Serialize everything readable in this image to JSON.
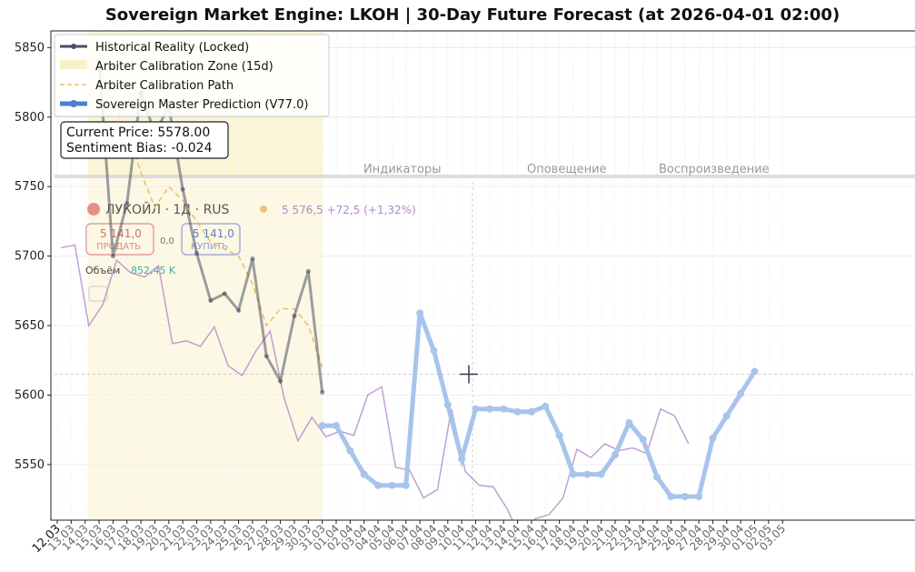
{
  "chart_data": {
    "type": "line",
    "title": "Sovereign Market Engine: LKOH | 30-Day Future Forecast (at 2026-04-01 02:00)",
    "xlabel": "",
    "ylabel": "",
    "ylim": [
      5510,
      5862
    ],
    "y_ticks": [
      5550,
      5600,
      5650,
      5700,
      5750,
      5800,
      5850
    ],
    "x_ticks": [
      "12.03",
      "13.03",
      "14.03",
      "15.03",
      "16.03",
      "17.03",
      "18.03",
      "19.03",
      "20.03",
      "21.03",
      "22.03",
      "23.03",
      "24.03",
      "25.03",
      "26.03",
      "27.03",
      "28.03",
      "29.03",
      "30.03",
      "31.03",
      "01.04",
      "02.04",
      "03.04",
      "04.04",
      "05.04",
      "06.04",
      "07.04",
      "08.04",
      "09.04",
      "10.04",
      "11.04",
      "12.04",
      "13.04",
      "14.04",
      "15.04",
      "16.04",
      "17.04",
      "18.04",
      "19.04",
      "20.04",
      "21.04",
      "22.04",
      "23.04",
      "24.04",
      "25.04",
      "26.04",
      "27.04",
      "28.04",
      "29.04",
      "30.04",
      "01.05",
      "02.05",
      "03.05"
    ],
    "grid": true,
    "legend_position": "top-left",
    "calibration_zone": {
      "start": "14.03",
      "end": "31.03"
    },
    "series": [
      {
        "name": "Historical Reality (Locked)",
        "color": "#4a5060",
        "x": [
          "15.03",
          "16.03",
          "17.03",
          "18.03",
          "19.03",
          "20.03",
          "21.03",
          "22.03",
          "23.03",
          "24.03",
          "25.03",
          "26.03",
          "27.03",
          "28.03",
          "29.03",
          "30.03",
          "31.03"
        ],
        "values": [
          5840,
          5700,
          5738,
          5818,
          5788,
          5808,
          5748,
          5702,
          5668,
          5673,
          5661,
          5698,
          5628,
          5610,
          5657,
          5689,
          5602
        ]
      },
      {
        "name": "Arbiter Calibration Zone (15d)",
        "color": "#fbf1c8"
      },
      {
        "name": "Arbiter Calibration Path",
        "color": "#e8c060",
        "x": [
          "15.03",
          "16.03",
          "17.03",
          "18.03",
          "19.03",
          "20.03",
          "21.03",
          "22.03",
          "23.03",
          "24.03",
          "25.03",
          "26.03",
          "27.03",
          "28.03",
          "29.03",
          "30.03",
          "31.03"
        ],
        "values": [
          5840,
          5810,
          5790,
          5760,
          5735,
          5750,
          5740,
          5725,
          5710,
          5705,
          5700,
          5680,
          5650,
          5662,
          5662,
          5650,
          5620
        ]
      },
      {
        "name": "Sovereign Master Prediction (V77.0)",
        "color": "#4a80d0",
        "x": [
          "31.03",
          "01.04",
          "02.04",
          "03.04",
          "04.04",
          "05.04",
          "06.04",
          "07.04",
          "08.04",
          "09.04",
          "10.04",
          "11.04",
          "12.04",
          "13.04",
          "14.04",
          "15.04",
          "16.04",
          "17.04",
          "18.04",
          "19.04",
          "20.04",
          "21.04",
          "22.04",
          "23.04",
          "24.04",
          "25.04",
          "26.04",
          "27.04",
          "28.04",
          "29.04",
          "30.04",
          "01.05"
        ],
        "values": [
          5578,
          5578,
          5560,
          5543,
          5535,
          5535,
          5535,
          5659,
          5632,
          5593,
          5554,
          5590,
          5590,
          5590,
          5588,
          5588,
          5592,
          5571,
          5543,
          5543,
          5543,
          5557,
          5580,
          5568,
          5541,
          5527,
          5527,
          5527,
          5569,
          5585,
          5601,
          5617
        ]
      }
    ]
  },
  "info_box": {
    "current_price": "Current Price: 5578.00",
    "sentiment_bias": "Sentiment Bias: -0.024"
  },
  "overlay": {
    "instrument": "ЛУКОЙЛ · 1Д · RUS",
    "quote": "5 576,5 +72,5 (+1,32%)",
    "sell_price": "5 141,0",
    "sell_label": "ПРОДАТЬ",
    "spread": "0,0",
    "buy_price": "5 141,0",
    "buy_label": "КУПИТЬ",
    "volume_label": "Объём",
    "volume_value": "852,45 K",
    "toolbar_a": "Индикаторы",
    "toolbar_b": "Оповещение",
    "toolbar_c": "Воспроизведение",
    "price_line": [
      5706,
      5708,
      5650,
      5665,
      5697,
      5688,
      5685,
      5693,
      5637,
      5639,
      5635,
      5649,
      5621,
      5614,
      5632,
      5646,
      5598,
      5567,
      5584,
      5570,
      5574,
      5571,
      5600,
      5606,
      5548,
      5546,
      5526,
      5532,
      5590,
      5545,
      5535,
      5534,
      5518,
      5497,
      5511,
      5514,
      5526,
      5561,
      5555,
      5565,
      5560,
      5562,
      5558,
      5590,
      5585,
      5565
    ],
    "price_line_start": 2
  },
  "colors": {
    "historical": "#4a5060",
    "calibration_zone": "#fbf1c8",
    "calibration_path": "#e8c060",
    "prediction": "#4a80d0",
    "prediction_faded": "#a8c4ec",
    "overlay_line": "#b088c8",
    "overlay_line_blue": "#8890c0"
  }
}
